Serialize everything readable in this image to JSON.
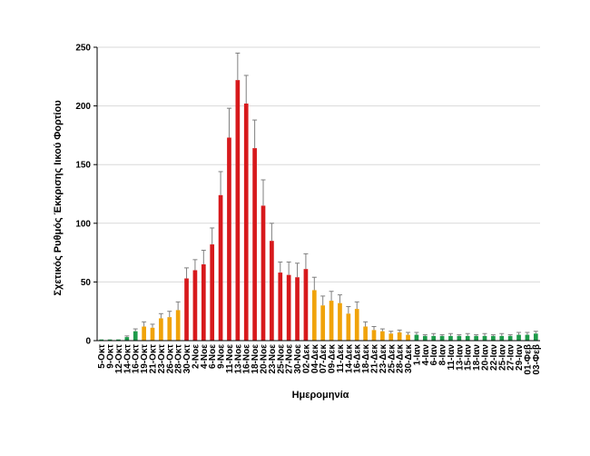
{
  "chart_data": {
    "type": "bar",
    "xlabel": "Ημερομηνία",
    "ylabel": "Σχετικός Ρυθμός Έκκρισης Ιικού Φορτίου",
    "ylim": [
      0,
      250
    ],
    "yticks": [
      0,
      50,
      100,
      150,
      200,
      250
    ],
    "grid": true,
    "colors": {
      "green": "#1e9a4a",
      "orange": "#f0a30a",
      "red": "#d7191c"
    },
    "categories": [
      "5-Οκτ",
      "9-Οκτ",
      "12-Οκτ",
      "14-Οκτ",
      "16-Οκτ",
      "19-Οκτ",
      "21-Οκτ",
      "23-Οκτ",
      "26-Οκτ",
      "28-Οκτ",
      "30-Οκτ",
      "2-Νοε",
      "4-Νοε",
      "6-Νοε",
      "9-Νοε",
      "11-Νοε",
      "13-Νοε",
      "16-Νοε",
      "18-Νοε",
      "20-Νοε",
      "23-Νοε",
      "25-Νοε",
      "27-Νοε",
      "30-Νοε",
      "02-Δεκ",
      "04-Δεκ",
      "07-Δεκ",
      "09-Δεκ",
      "11-Δεκ",
      "14-Δεκ",
      "16-Δεκ",
      "18-Δεκ",
      "21-Δεκ",
      "23-Δεκ",
      "25-Δεκ",
      "28-Δεκ",
      "30-Δεκ",
      "1-Ιαν",
      "4-Ιαν",
      "6-Ιαν",
      "8-Ιαν",
      "11-Ιαν",
      "13-Ιαν",
      "15-Ιαν",
      "18-Ιαν",
      "20-Ιαν",
      "22-Ιαν",
      "25-Ιαν",
      "27-Ιαν",
      "29-Ιαν",
      "01-Φεβ",
      "03-Φεβ"
    ],
    "values": [
      1,
      1,
      1,
      3,
      8,
      12,
      11,
      19,
      20,
      26,
      53,
      60,
      65,
      82,
      124,
      173,
      222,
      202,
      164,
      115,
      85,
      58,
      56,
      54,
      61,
      43,
      30,
      34,
      32,
      23,
      27,
      12,
      9,
      8,
      6,
      7,
      5,
      5,
      4,
      4,
      4,
      4,
      4,
      4,
      4,
      4,
      4,
      4,
      4,
      5,
      5,
      6
    ],
    "errors": [
      0,
      0,
      0,
      1,
      2,
      4,
      3,
      4,
      5,
      7,
      9,
      9,
      12,
      14,
      20,
      25,
      23,
      24,
      24,
      22,
      15,
      9,
      11,
      12,
      13,
      11,
      8,
      8,
      7,
      6,
      6,
      4,
      3,
      2,
      2,
      2,
      2,
      2,
      1,
      2,
      1,
      2,
      1,
      2,
      1,
      2,
      1,
      2,
      1,
      2,
      2,
      2
    ],
    "bar_colors": [
      "green",
      "green",
      "green",
      "green",
      "green",
      "orange",
      "orange",
      "orange",
      "orange",
      "orange",
      "red",
      "red",
      "red",
      "red",
      "red",
      "red",
      "red",
      "red",
      "red",
      "red",
      "red",
      "red",
      "red",
      "red",
      "red",
      "orange",
      "orange",
      "orange",
      "orange",
      "orange",
      "orange",
      "orange",
      "orange",
      "orange",
      "orange",
      "orange",
      "orange",
      "green",
      "green",
      "green",
      "green",
      "green",
      "green",
      "green",
      "green",
      "green",
      "green",
      "green",
      "green",
      "green",
      "green",
      "green"
    ]
  }
}
